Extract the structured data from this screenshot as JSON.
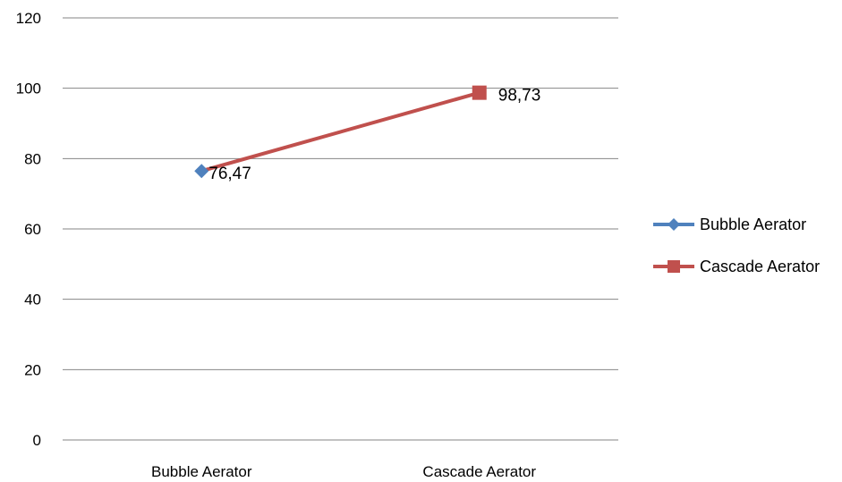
{
  "chart_data": {
    "type": "line",
    "title": "",
    "xlabel": "",
    "ylabel": "",
    "categories": [
      "Bubble Aerator",
      "Cascade Aerator"
    ],
    "ylim": [
      0,
      120
    ],
    "yticks": [
      0,
      20,
      40,
      60,
      80,
      100,
      120
    ],
    "grid": true,
    "legend_position": "right",
    "series": [
      {
        "name": "Bubble Aerator",
        "color": "#4F81BD",
        "marker": "diamond",
        "points": [
          {
            "category": "Bubble Aerator",
            "value": 76.47,
            "label": "76,47"
          }
        ]
      },
      {
        "name": "Cascade Aerator",
        "color": "#C0504D",
        "marker": "square",
        "points": [
          {
            "category": "Cascade Aerator",
            "value": 98.73,
            "label": "98,73"
          }
        ]
      }
    ],
    "connector": {
      "color": "#C0504D",
      "from": "Bubble Aerator",
      "to": "Cascade Aerator"
    }
  }
}
